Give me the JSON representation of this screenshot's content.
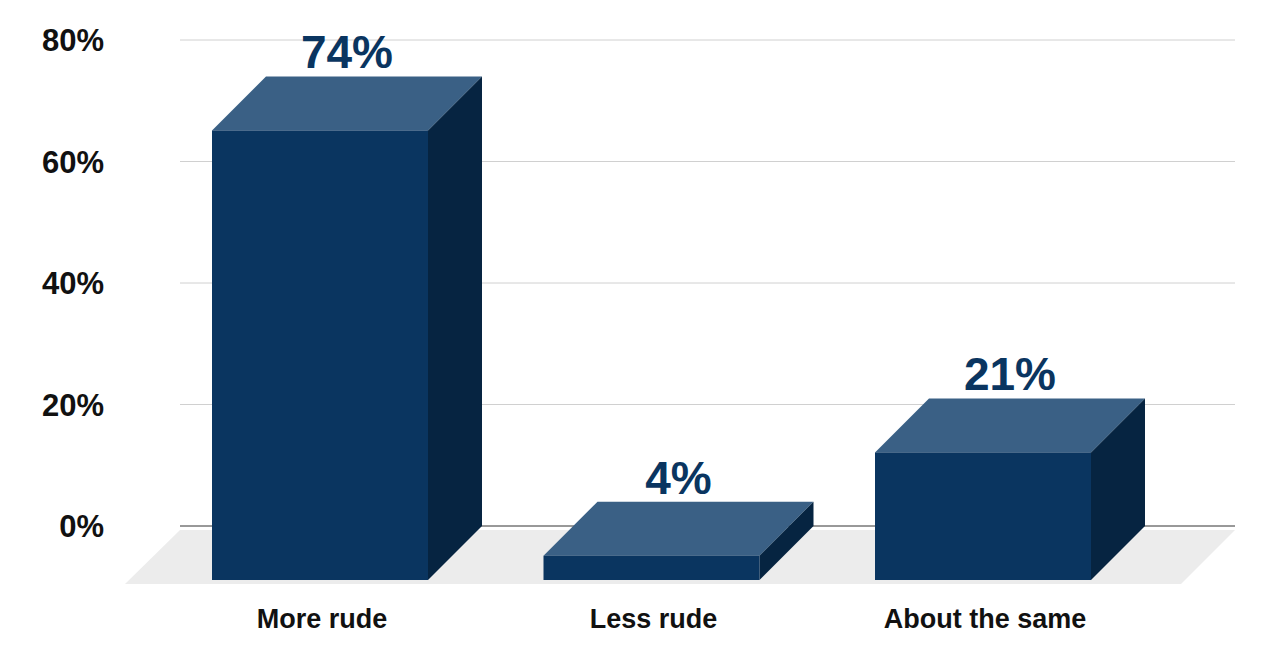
{
  "chart_data": {
    "type": "bar",
    "categories": [
      "More rude",
      "Less rude",
      "About the same"
    ],
    "values": [
      74,
      4,
      21
    ],
    "value_labels": [
      "74%",
      "4%",
      "21%"
    ],
    "color": "#0a3560",
    "ylim": [
      0,
      80
    ],
    "yticks": [
      {
        "value": 0,
        "label": "0%"
      },
      {
        "value": 20,
        "label": "20%"
      },
      {
        "value": 40,
        "label": "40%"
      },
      {
        "value": 60,
        "label": "60%"
      },
      {
        "value": 80,
        "label": "80%"
      }
    ],
    "grid": true,
    "data_labels": true
  }
}
